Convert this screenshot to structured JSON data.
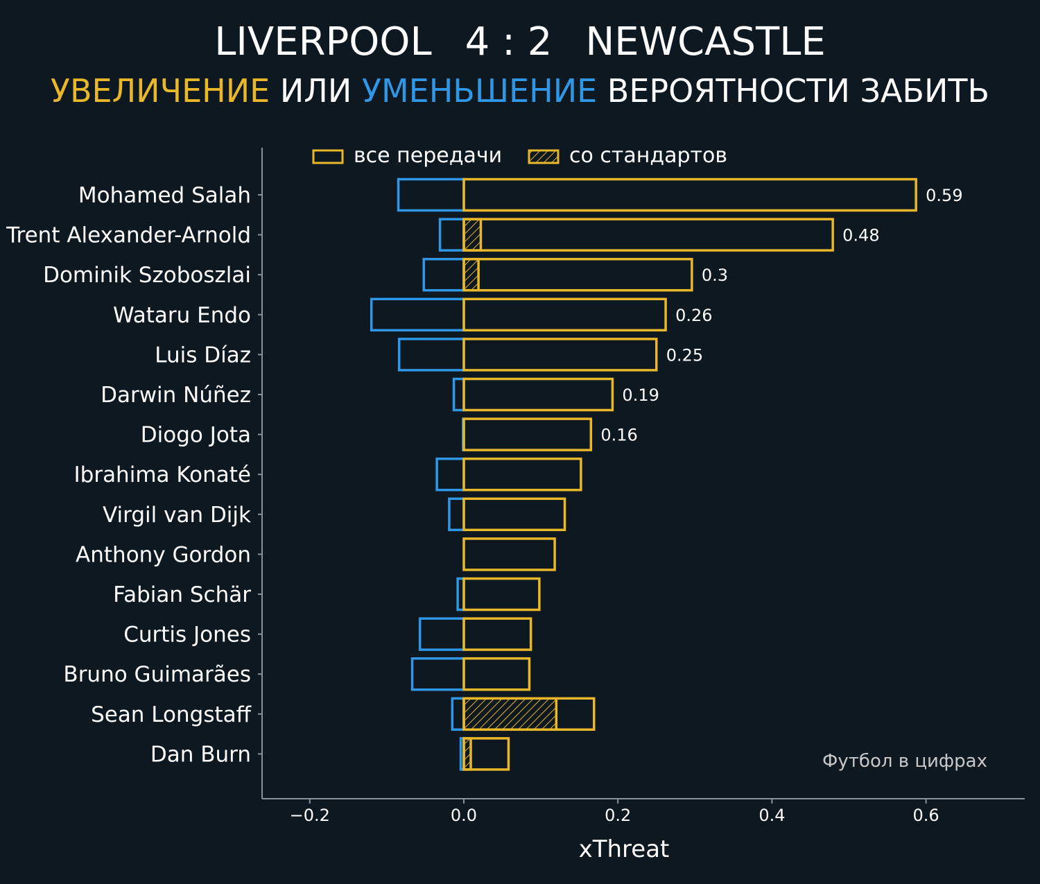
{
  "header": {
    "team_home": "LIVERPOOL",
    "score": "4 : 2",
    "team_away": "NEWCASTLE",
    "subtitle_increase": "УВЕЛИЧЕНИЕ",
    "subtitle_or": "ИЛИ",
    "subtitle_decrease": "УМЕНЬШЕНИЕ",
    "subtitle_rest": "ВЕРОЯТНОСТИ ЗАБИТЬ"
  },
  "watermark": "Футбол в цифрах",
  "colors": {
    "background": "#0e1820",
    "increase": "#e8b72a",
    "decrease": "#2f97e6",
    "axis": "#8a9299",
    "text": "#ffffff",
    "watermark": "#c8c8c8"
  },
  "chart_data": {
    "type": "bar",
    "orientation": "horizontal",
    "xlabel": "xThreat",
    "xlim": [
      -0.26,
      0.73
    ],
    "xticks": [
      -0.2,
      0.0,
      0.2,
      0.4,
      0.6
    ],
    "xtick_labels": [
      "−0.2",
      "0.0",
      "0.2",
      "0.4",
      "0.6"
    ],
    "legend": {
      "placement": "top-center",
      "entries": [
        "все передачи",
        "со стандартов"
      ]
    },
    "categories": [
      "Mohamed Salah",
      "Trent Alexander-Arnold",
      "Dominik Szoboszlai",
      "Wataru Endo",
      "Luis Díaz",
      "Darwin Núñez",
      "Diogo Jota",
      "Ibrahima Konaté",
      "Virgil van Dijk",
      "Anthony Gordon",
      "Fabian Schär",
      "Curtis Jones",
      "Bruno Guimarães",
      "Sean Longstaff",
      "Dan Burn"
    ],
    "series": [
      {
        "name": "все передачи",
        "values": [
          0.587,
          0.479,
          0.296,
          0.262,
          0.25,
          0.193,
          0.165,
          0.152,
          0.131,
          0.118,
          0.098,
          0.087,
          0.085,
          0.169,
          0.058
        ]
      },
      {
        "name": "со стандартов",
        "values": [
          0.0,
          0.022,
          0.019,
          0.0,
          0.0,
          0.0,
          0.0,
          0.0,
          0.0,
          0.0,
          0.0,
          0.0,
          0.0,
          0.12,
          0.009
        ]
      },
      {
        "values": [
          -0.085,
          -0.031,
          -0.052,
          -0.12,
          -0.084,
          -0.013,
          -0.001,
          -0.035,
          -0.019,
          0.0,
          -0.008,
          -0.057,
          -0.067,
          -0.015,
          -0.004
        ]
      }
    ],
    "data_labels": [
      "0.59",
      "0.48",
      "0.3",
      "0.26",
      "0.25",
      "0.19",
      "0.16",
      "",
      "",
      "",
      "",
      "",
      "",
      "",
      ""
    ]
  }
}
